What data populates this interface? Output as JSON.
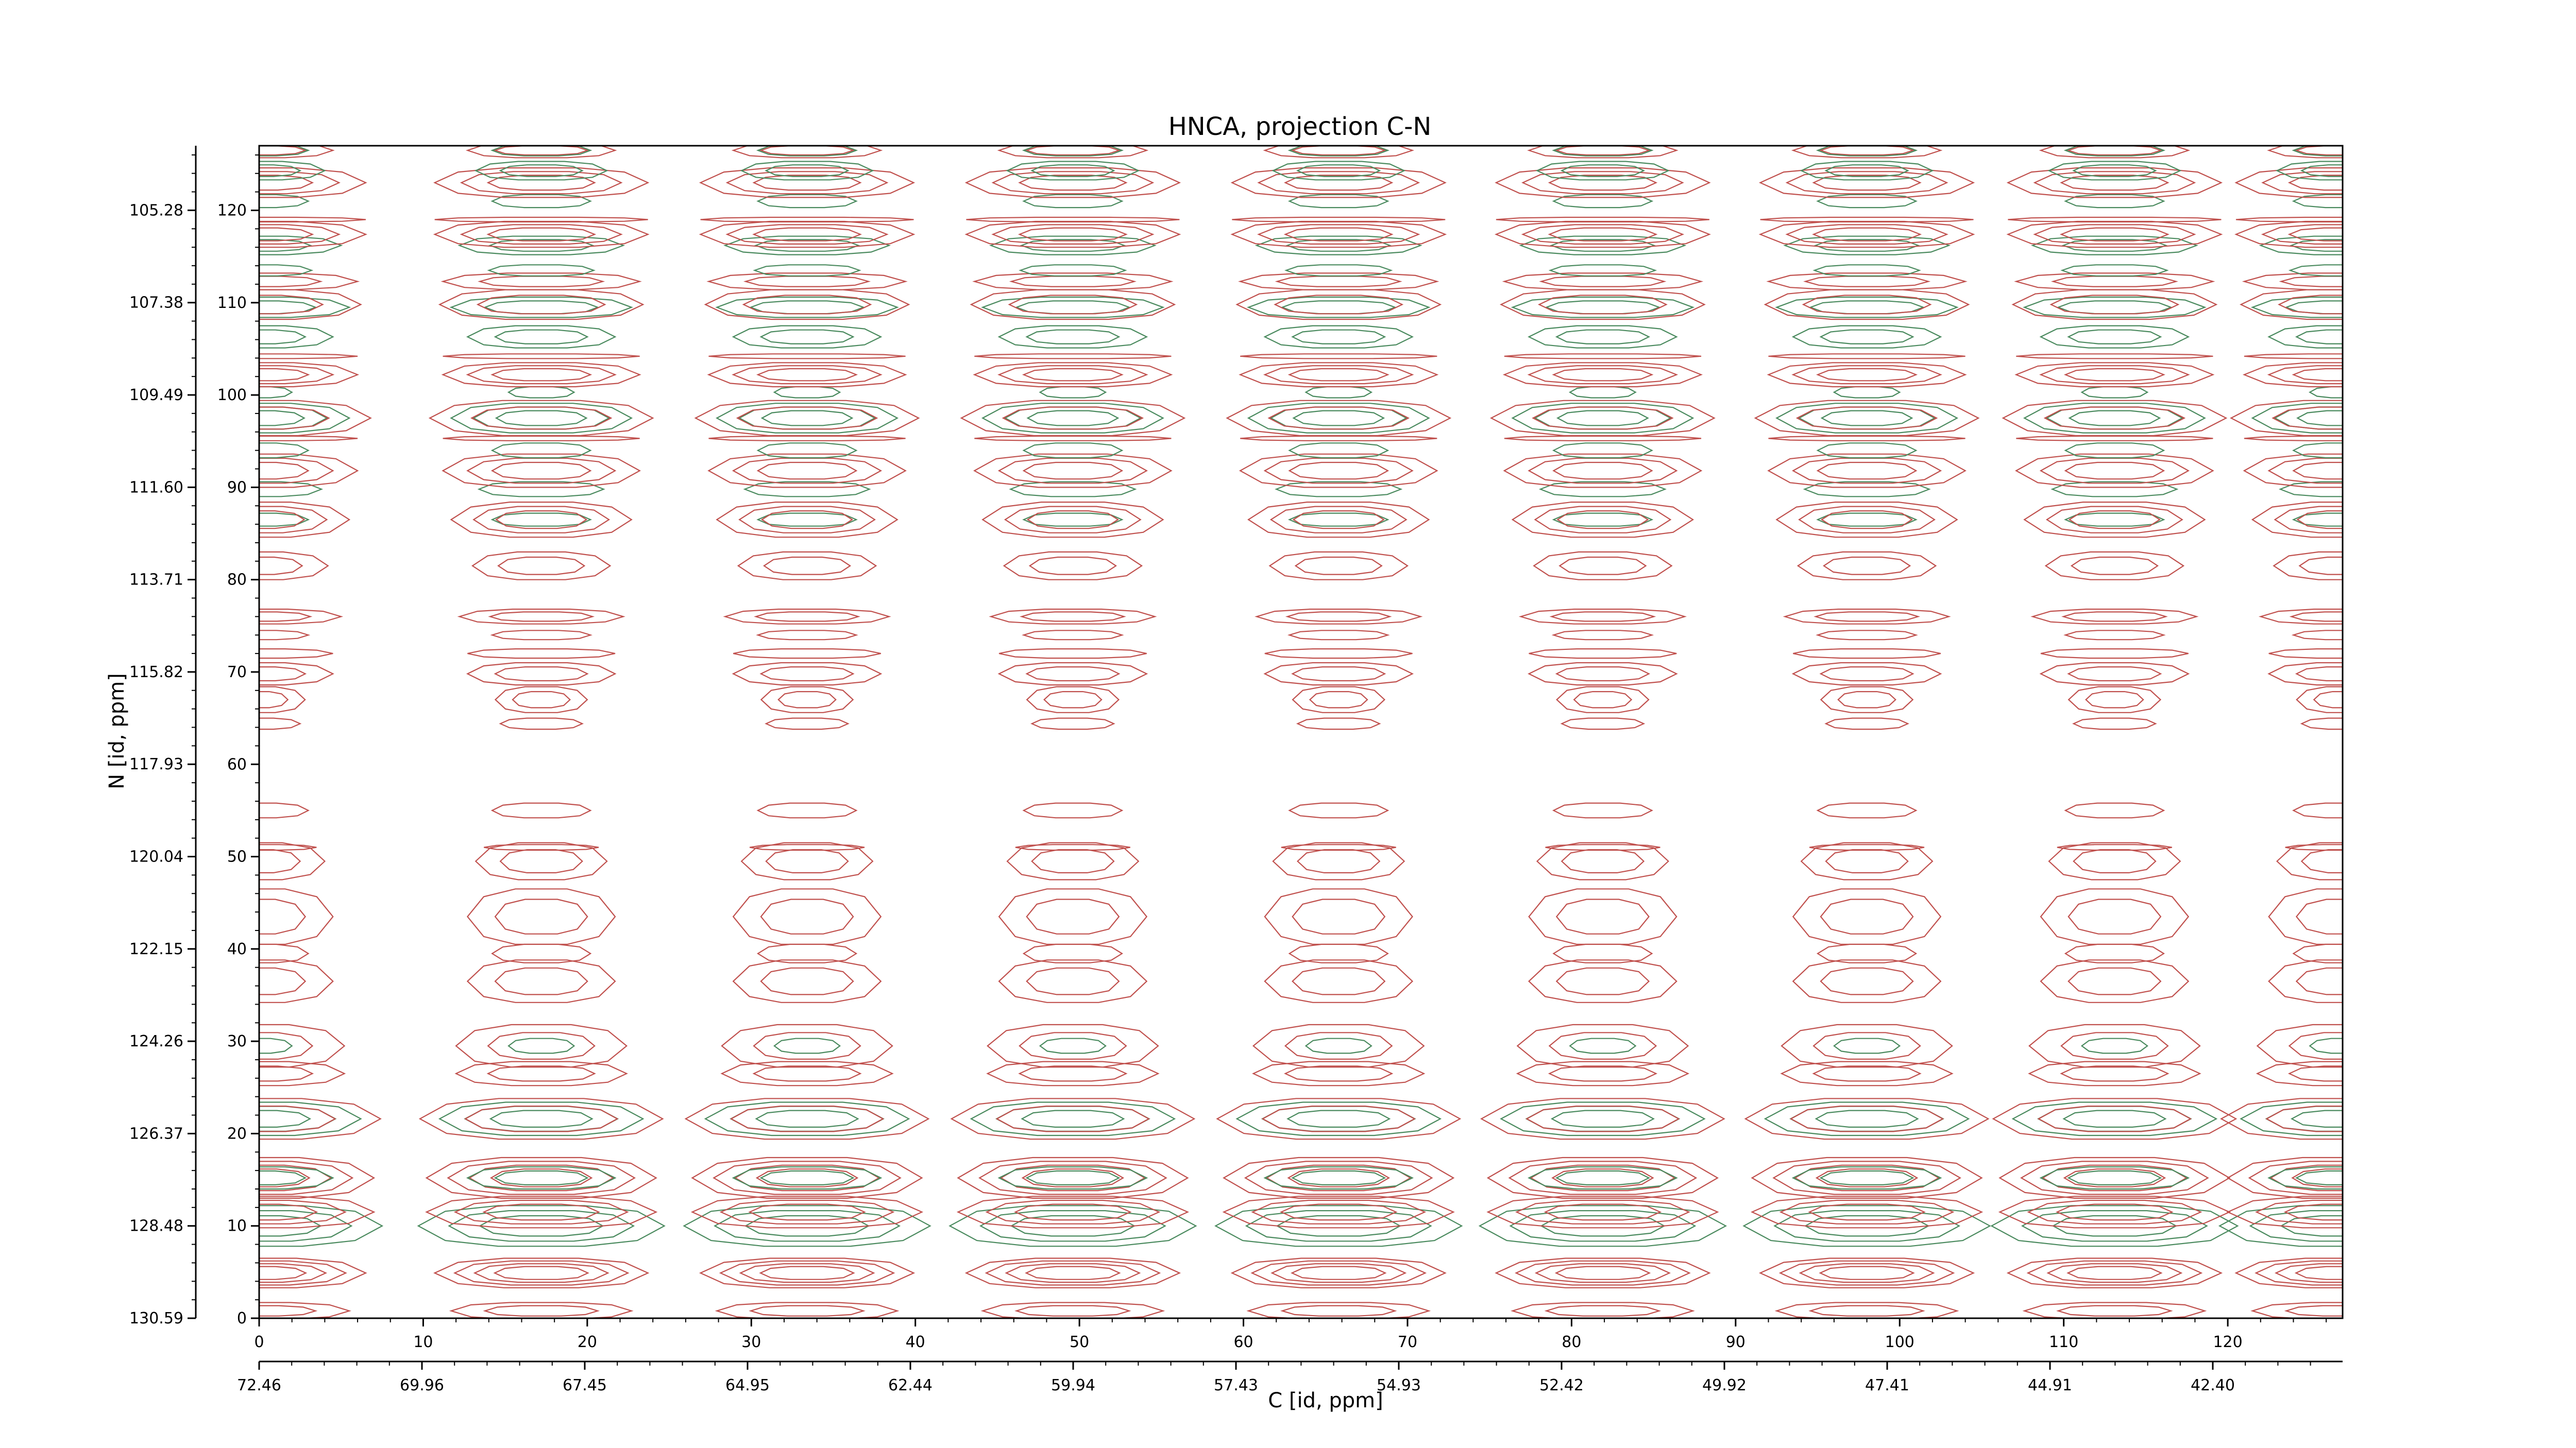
{
  "chart_data": {
    "type": "contour",
    "title": "HNCA, projection C-N",
    "xlabel": "C [id, ppm]",
    "ylabel": "N [id, ppm]",
    "xlim": [
      0,
      127
    ],
    "ylim": [
      0,
      127
    ],
    "x_index_ticks": [
      0,
      10,
      20,
      30,
      40,
      50,
      60,
      70,
      80,
      90,
      100,
      110,
      120
    ],
    "y_index_ticks": [
      0,
      10,
      20,
      30,
      40,
      50,
      60,
      70,
      80,
      90,
      100,
      110,
      120
    ],
    "x_ppm_ticks": [
      "72.46",
      "69.96",
      "67.45",
      "64.95",
      "62.44",
      "59.94",
      "57.43",
      "54.93",
      "52.42",
      "49.92",
      "47.41",
      "44.91",
      "42.40"
    ],
    "y_ppm_ticks": [
      "130.59",
      "128.48",
      "126.37",
      "124.26",
      "122.15",
      "120.04",
      "117.93",
      "115.82",
      "113.71",
      "111.60",
      "109.49",
      "107.38",
      "105.28"
    ],
    "series": [
      {
        "name": "positive",
        "color": "#c0504d"
      },
      {
        "name": "negative",
        "color": "#4a8a5e"
      }
    ],
    "column_centers": [
      0,
      17.2,
      33.4,
      49.6,
      65.8,
      81.9,
      98.0,
      113.1,
      127
    ],
    "row_bands": [
      {
        "y": 0.8,
        "sign": "positive",
        "half_height": 0.9,
        "width": 5.5,
        "levels": 2
      },
      {
        "y": 4.9,
        "sign": "positive",
        "half_height": 1.6,
        "width": 6.5,
        "levels": 4
      },
      {
        "y": 10.0,
        "sign": "negative",
        "half_height": 2.2,
        "width": 7.5,
        "levels": 3
      },
      {
        "y": 11.5,
        "sign": "positive",
        "half_height": 1.7,
        "width": 7.0,
        "levels": 3
      },
      {
        "y": 15.2,
        "sign": "positive",
        "half_height": 2.2,
        "width": 7.0,
        "levels": 4
      },
      {
        "y": 15.2,
        "sign": "negative",
        "half_height": 1.2,
        "width": 4.5,
        "levels": 2
      },
      {
        "y": 21.6,
        "sign": "negative",
        "half_height": 1.8,
        "width": 6.2,
        "levels": 3
      },
      {
        "y": 21.6,
        "sign": "positive",
        "half_height": 2.2,
        "width": 7.4,
        "levels": 2
      },
      {
        "y": 26.5,
        "sign": "positive",
        "half_height": 1.3,
        "width": 5.2,
        "levels": 2
      },
      {
        "y": 29.5,
        "sign": "negative",
        "half_height": 0.8,
        "width": 2.0,
        "levels": 1
      },
      {
        "y": 29.5,
        "sign": "positive",
        "half_height": 2.3,
        "width": 5.2,
        "levels": 2
      },
      {
        "y": 36.5,
        "sign": "positive",
        "half_height": 2.3,
        "width": 4.5,
        "levels": 2
      },
      {
        "y": 39.5,
        "sign": "positive",
        "half_height": 1.0,
        "width": 3.0,
        "levels": 1
      },
      {
        "y": 43.5,
        "sign": "positive",
        "half_height": 3.0,
        "width": 4.5,
        "levels": 2
      },
      {
        "y": 49.5,
        "sign": "positive",
        "half_height": 2.0,
        "width": 4.0,
        "levels": 2
      },
      {
        "y": 51.0,
        "sign": "positive",
        "half_height": 0.3,
        "width": 3.5,
        "levels": 1
      },
      {
        "y": 55.0,
        "sign": "positive",
        "half_height": 0.8,
        "width": 3.0,
        "levels": 1
      },
      {
        "y": 64.4,
        "sign": "positive",
        "half_height": 0.6,
        "width": 2.5,
        "levels": 1
      },
      {
        "y": 67.0,
        "sign": "positive",
        "half_height": 1.4,
        "width": 2.8,
        "levels": 2
      },
      {
        "y": 69.8,
        "sign": "positive",
        "half_height": 1.2,
        "width": 4.5,
        "levels": 2
      },
      {
        "y": 72.0,
        "sign": "positive",
        "half_height": 0.5,
        "width": 4.5,
        "levels": 1
      },
      {
        "y": 74.0,
        "sign": "positive",
        "half_height": 0.5,
        "width": 3.0,
        "levels": 1
      },
      {
        "y": 76.0,
        "sign": "positive",
        "half_height": 0.8,
        "width": 5.0,
        "levels": 2
      },
      {
        "y": 81.5,
        "sign": "positive",
        "half_height": 1.5,
        "width": 4.2,
        "levels": 2
      },
      {
        "y": 86.5,
        "sign": "negative",
        "half_height": 0.7,
        "width": 3.0,
        "levels": 1
      },
      {
        "y": 86.5,
        "sign": "positive",
        "half_height": 1.9,
        "width": 5.5,
        "levels": 3
      },
      {
        "y": 89.8,
        "sign": "negative",
        "half_height": 0.8,
        "width": 3.8,
        "levels": 1
      },
      {
        "y": 91.8,
        "sign": "positive",
        "half_height": 1.8,
        "width": 6.0,
        "levels": 3
      },
      {
        "y": 94.0,
        "sign": "negative",
        "half_height": 0.8,
        "width": 3.0,
        "levels": 1
      },
      {
        "y": 95.3,
        "sign": "positive",
        "half_height": 0.25,
        "width": 6.0,
        "levels": 1
      },
      {
        "y": 97.5,
        "sign": "negative",
        "half_height": 1.6,
        "width": 5.5,
        "levels": 3
      },
      {
        "y": 97.5,
        "sign": "positive",
        "half_height": 1.9,
        "width": 6.8,
        "levels": 2
      },
      {
        "y": 100.3,
        "sign": "negative",
        "half_height": 0.6,
        "width": 2.0,
        "levels": 1
      },
      {
        "y": 102.2,
        "sign": "positive",
        "half_height": 1.3,
        "width": 6.0,
        "levels": 3
      },
      {
        "y": 104.2,
        "sign": "positive",
        "half_height": 0.25,
        "width": 6.0,
        "levels": 1
      },
      {
        "y": 106.3,
        "sign": "negative",
        "half_height": 1.2,
        "width": 4.5,
        "levels": 2
      },
      {
        "y": 109.5,
        "sign": "negative",
        "half_height": 1.1,
        "width": 5.5,
        "levels": 2
      },
      {
        "y": 109.8,
        "sign": "positive",
        "half_height": 1.6,
        "width": 6.2,
        "levels": 2
      },
      {
        "y": 112.3,
        "sign": "positive",
        "half_height": 0.9,
        "width": 6.0,
        "levels": 2
      },
      {
        "y": 113.5,
        "sign": "negative",
        "half_height": 0.6,
        "width": 3.2,
        "levels": 1
      },
      {
        "y": 116.2,
        "sign": "negative",
        "half_height": 1.0,
        "width": 5.0,
        "levels": 2
      },
      {
        "y": 117.4,
        "sign": "positive",
        "half_height": 1.4,
        "width": 6.5,
        "levels": 3
      },
      {
        "y": 119.0,
        "sign": "positive",
        "half_height": 0.25,
        "width": 6.5,
        "levels": 1
      },
      {
        "y": 121.0,
        "sign": "negative",
        "half_height": 0.7,
        "width": 3.0,
        "levels": 1
      },
      {
        "y": 123.0,
        "sign": "positive",
        "half_height": 1.6,
        "width": 6.5,
        "levels": 3
      },
      {
        "y": 124.3,
        "sign": "negative",
        "half_height": 1.0,
        "width": 4.0,
        "levels": 2
      },
      {
        "y": 126.5,
        "sign": "positive",
        "half_height": 0.8,
        "width": 4.5,
        "levels": 2
      },
      {
        "y": 126.5,
        "sign": "negative",
        "half_height": 0.6,
        "width": 3.0,
        "levels": 1
      }
    ]
  }
}
